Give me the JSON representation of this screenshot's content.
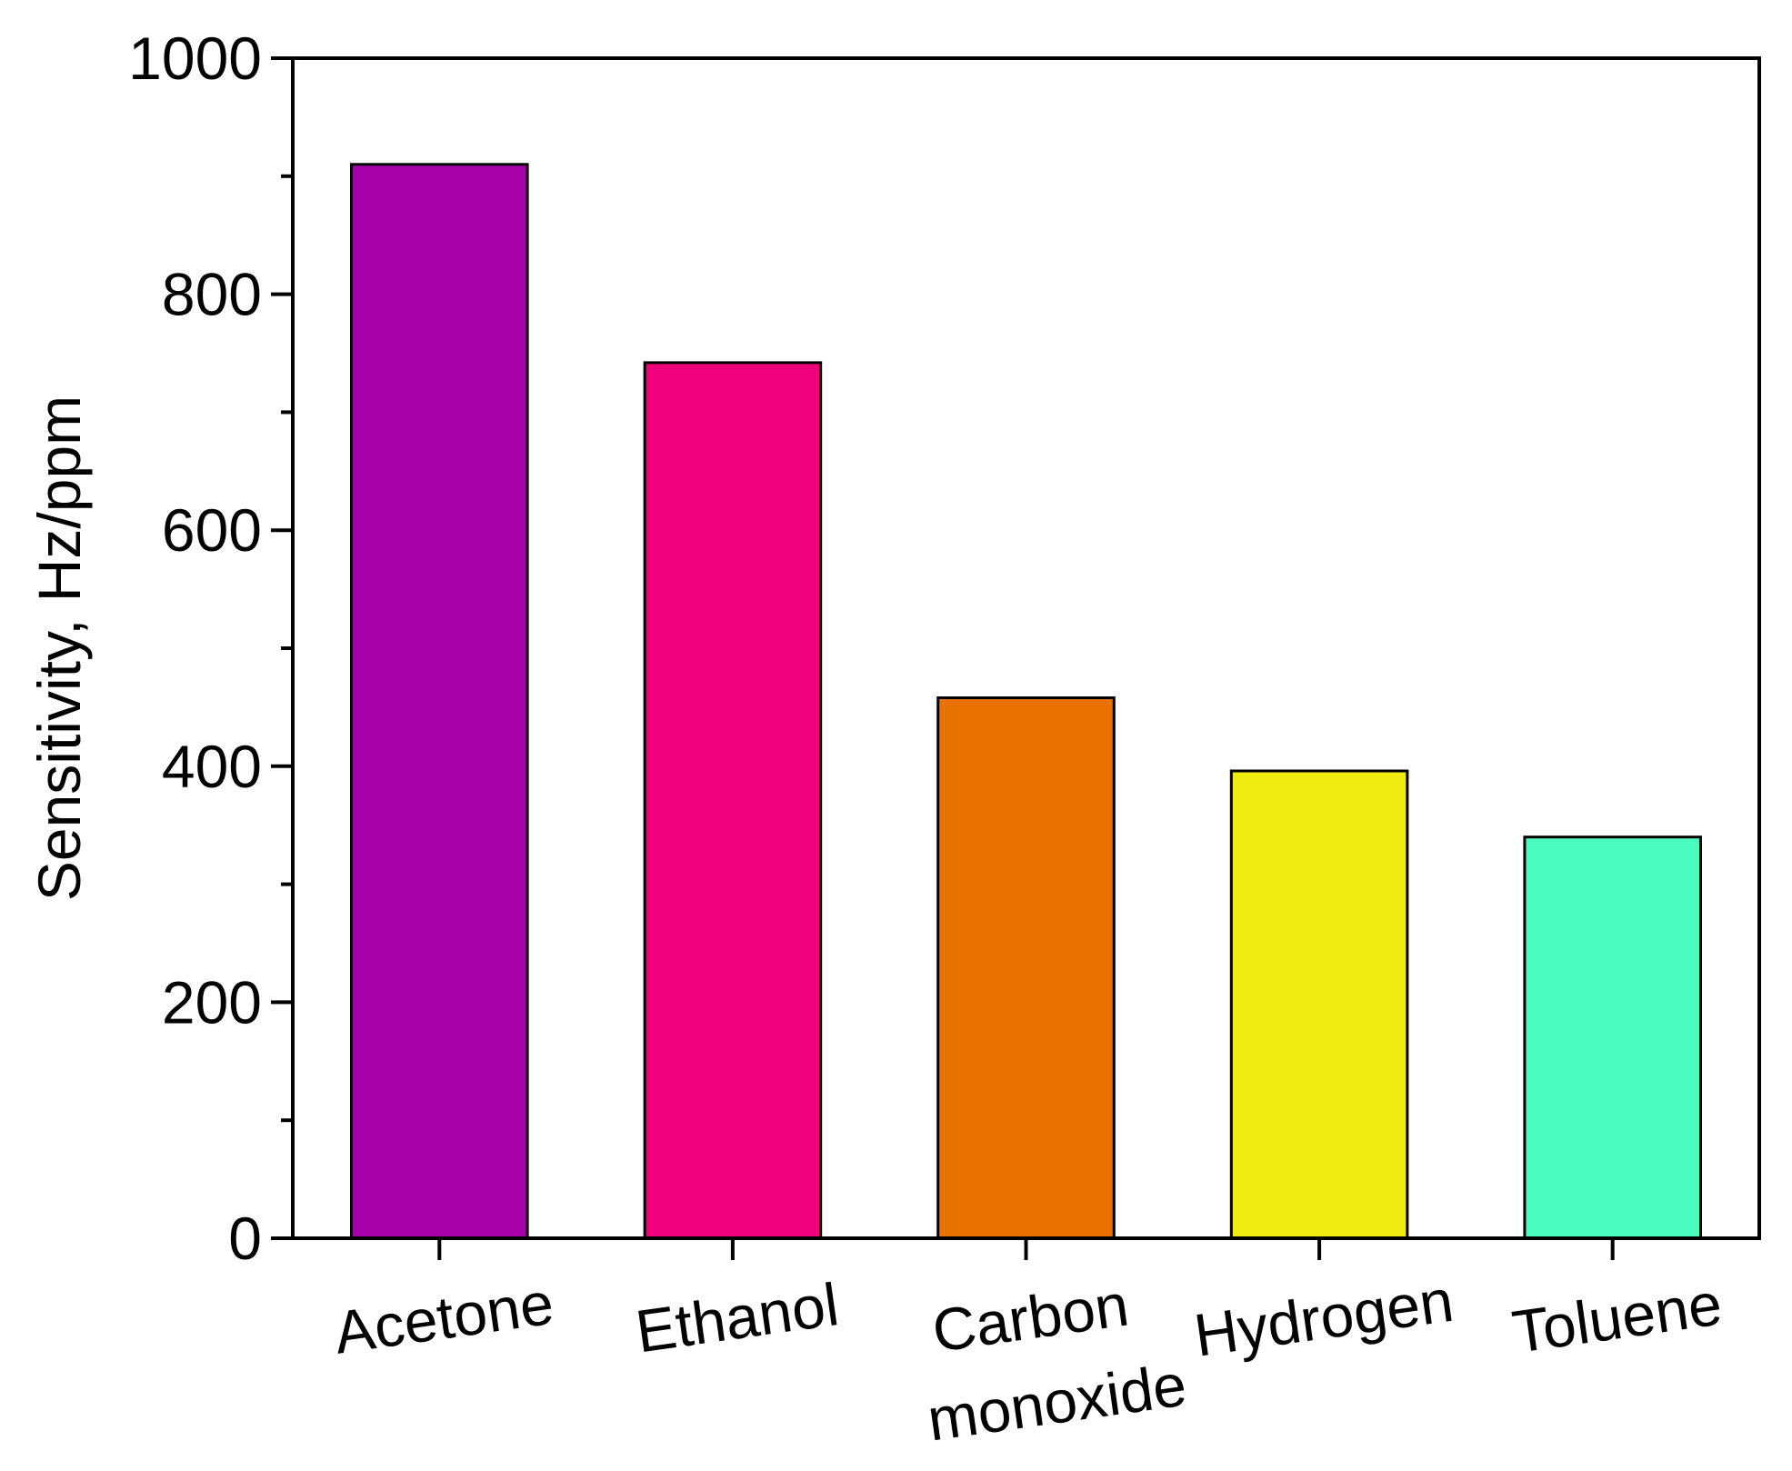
{
  "chart_data": {
    "type": "bar",
    "title": "",
    "xlabel": "",
    "ylabel": "Sensitivity, Hz/ppm",
    "ylim": [
      0,
      1000
    ],
    "yticks": [
      "0",
      "200",
      "400",
      "600",
      "800",
      "1000"
    ],
    "grid": false,
    "categories": [
      [
        "Acetone"
      ],
      [
        "Ethanol"
      ],
      [
        "Carbon",
        "monoxide"
      ],
      [
        "Hydrogen"
      ],
      [
        "Toluene"
      ]
    ],
    "values": [
      910,
      742,
      458,
      396,
      340
    ],
    "colors": [
      "#a600a8",
      "#f0007a",
      "#e87100",
      "#f0ec12",
      "#4afcc0"
    ]
  }
}
